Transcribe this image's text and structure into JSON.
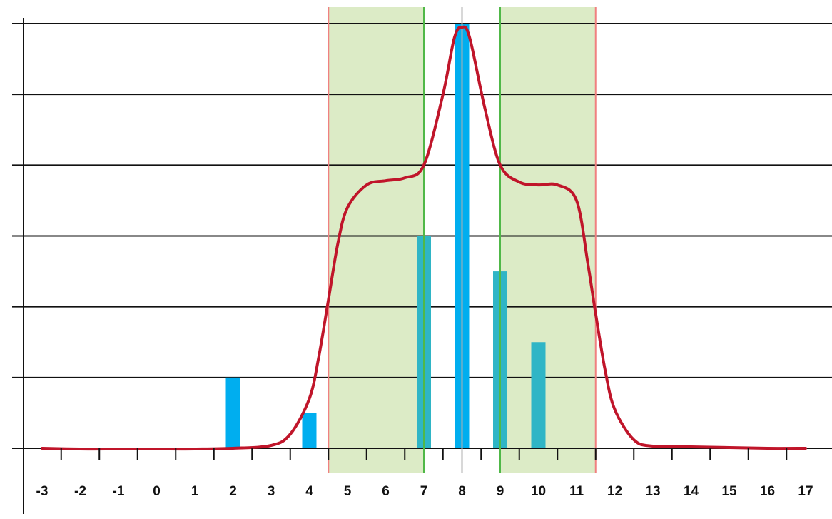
{
  "chart_data": {
    "type": "bar",
    "title": "",
    "xlabel": "",
    "ylabel": "",
    "x_ticks": [
      "-3",
      "-2",
      "-1",
      "0",
      "1",
      "2",
      "3",
      "4",
      "5",
      "6",
      "7",
      "8",
      "9",
      "10",
      "11",
      "12",
      "13",
      "14",
      "15",
      "16",
      "17"
    ],
    "xlim": [
      -3,
      17
    ],
    "ylim": [
      0,
      6
    ],
    "grid": true,
    "bars": [
      {
        "x": 2,
        "value": 1,
        "color": "#00aeef"
      },
      {
        "x": 4,
        "value": 0.5,
        "color": "#00aeef"
      },
      {
        "x": 7,
        "value": 3,
        "color": "#2fb5c6"
      },
      {
        "x": 8,
        "value": 6,
        "color": "#00aeef"
      },
      {
        "x": 9,
        "value": 2.5,
        "color": "#2fb5c6"
      },
      {
        "x": 10,
        "value": 1.5,
        "color": "#2fb5c6"
      }
    ],
    "curve": {
      "color": "#c0152a",
      "points": [
        [
          -3,
          0
        ],
        [
          -2,
          -0.01
        ],
        [
          -1,
          -0.01
        ],
        [
          0,
          -0.01
        ],
        [
          1,
          -0.01
        ],
        [
          2,
          0
        ],
        [
          3,
          0.04
        ],
        [
          3.5,
          0.2
        ],
        [
          4,
          0.7
        ],
        [
          4.25,
          1.3
        ],
        [
          4.5,
          2.1
        ],
        [
          4.75,
          2.9
        ],
        [
          5,
          3.4
        ],
        [
          5.5,
          3.72
        ],
        [
          6,
          3.78
        ],
        [
          6.5,
          3.82
        ],
        [
          7,
          4.0
        ],
        [
          7.5,
          5.0
        ],
        [
          7.8,
          5.8
        ],
        [
          8,
          5.95
        ],
        [
          8.2,
          5.8
        ],
        [
          8.6,
          4.8
        ],
        [
          9,
          4.0
        ],
        [
          9.5,
          3.76
        ],
        [
          10,
          3.72
        ],
        [
          10.5,
          3.72
        ],
        [
          11,
          3.5
        ],
        [
          11.3,
          2.6
        ],
        [
          11.5,
          1.9
        ],
        [
          11.75,
          1.1
        ],
        [
          12,
          0.55
        ],
        [
          12.5,
          0.12
        ],
        [
          13,
          0.03
        ],
        [
          14,
          0.02
        ],
        [
          15,
          0.01
        ],
        [
          16,
          0.0
        ],
        [
          17,
          0.0
        ]
      ]
    },
    "shaded_regions": [
      {
        "from": 4.5,
        "to": 7,
        "color": "#dcebc6"
      },
      {
        "from": 9,
        "to": 11.5,
        "color": "#dcebc6"
      }
    ],
    "vertical_lines": [
      {
        "x": 4.5,
        "color": "#f08080"
      },
      {
        "x": 7,
        "color": "#50b848"
      },
      {
        "x": 8,
        "color": "#b0b0b0"
      },
      {
        "x": 9,
        "color": "#50b848"
      },
      {
        "x": 11.5,
        "color": "#f08080"
      }
    ],
    "colors": {
      "gridline": "#111111",
      "axis": "#111111"
    }
  }
}
